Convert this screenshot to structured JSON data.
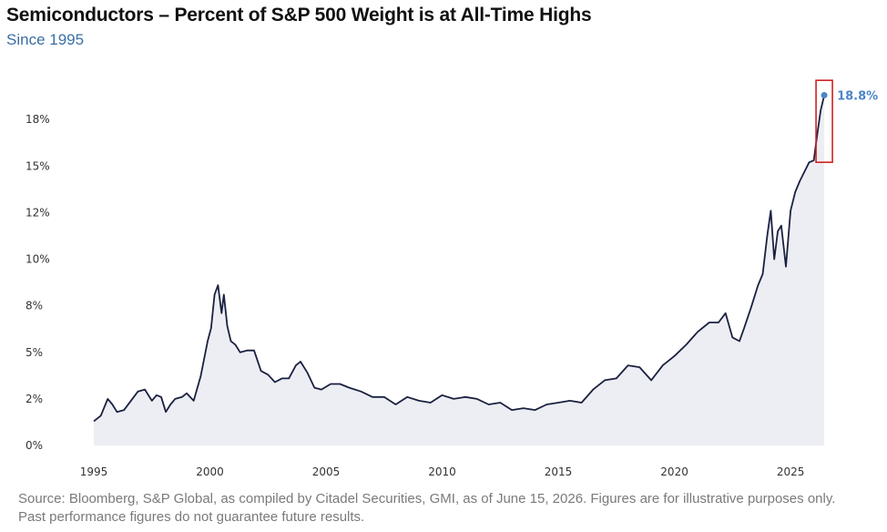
{
  "title": "Semiconductors – Percent of S&P 500 Weight is at All-Time Highs",
  "subtitle": "Since 1995",
  "source": "Source: Bloomberg, S&P Global, as compiled by Citadel Securities, GMI, as of June 15, 2026. Figures are for illustrative purposes only. Past performance figures do not guarantee future results.",
  "colors": {
    "line": "#1a2140",
    "area": "#eceef3",
    "highlight_box": "#cc2222",
    "end_marker": "#4a86c8",
    "title": "#111111",
    "subtitle": "#3a6fa6",
    "source": "#7a7a7a"
  },
  "chart_data": {
    "type": "area",
    "ylim": [
      0,
      20
    ],
    "xlim": [
      1995,
      2026.8
    ],
    "yticks": [
      0,
      2.5,
      5,
      7.5,
      10,
      12.5,
      15,
      17.5
    ],
    "ytick_labels": [
      "0%",
      "2%",
      "5%",
      "8%",
      "10%",
      "12%",
      "15%",
      "18%"
    ],
    "xticks": [
      1995,
      2000,
      2005,
      2010,
      2015,
      2020,
      2025
    ],
    "xtick_labels": [
      "1995",
      "2000",
      "2005",
      "2010",
      "2015",
      "2020",
      "2025"
    ],
    "grid": false,
    "legend": "none",
    "annotation": {
      "label": "18.8%",
      "x": 2026.45,
      "y": 18.8,
      "box_y_range": [
        15.2,
        19.6
      ]
    },
    "series": [
      {
        "name": "",
        "x": [
          1995.0,
          1995.3,
          1995.6,
          1995.8,
          1996.0,
          1996.3,
          1996.6,
          1996.9,
          1997.2,
          1997.5,
          1997.7,
          1997.9,
          1998.1,
          1998.3,
          1998.5,
          1998.8,
          1999.0,
          1999.3,
          1999.6,
          1999.9,
          2000.05,
          2000.2,
          2000.35,
          2000.5,
          2000.6,
          2000.75,
          2000.9,
          2001.1,
          2001.3,
          2001.6,
          2001.9,
          2002.2,
          2002.5,
          2002.8,
          2003.1,
          2003.4,
          2003.7,
          2003.9,
          2004.2,
          2004.5,
          2004.8,
          2005.2,
          2005.6,
          2006.0,
          2006.5,
          2007.0,
          2007.5,
          2008.0,
          2008.5,
          2009.0,
          2009.5,
          2010.0,
          2010.5,
          2011.0,
          2011.5,
          2012.0,
          2012.5,
          2013.0,
          2013.5,
          2014.0,
          2014.5,
          2015.0,
          2015.5,
          2016.0,
          2016.5,
          2017.0,
          2017.5,
          2018.0,
          2018.5,
          2019.0,
          2019.5,
          2020.0,
          2020.5,
          2021.0,
          2021.5,
          2021.9,
          2022.2,
          2022.5,
          2022.8,
          2023.0,
          2023.3,
          2023.6,
          2023.8,
          2024.0,
          2024.15,
          2024.3,
          2024.45,
          2024.6,
          2024.8,
          2025.0,
          2025.2,
          2025.4,
          2025.6,
          2025.8,
          2026.0,
          2026.15,
          2026.3,
          2026.45
        ],
        "values": [
          1.3,
          1.6,
          2.5,
          2.2,
          1.8,
          1.9,
          2.4,
          2.9,
          3.0,
          2.4,
          2.7,
          2.6,
          1.8,
          2.2,
          2.5,
          2.6,
          2.8,
          2.4,
          3.7,
          5.6,
          6.3,
          8.1,
          8.6,
          7.1,
          8.1,
          6.4,
          5.6,
          5.4,
          5.0,
          5.1,
          5.1,
          4.0,
          3.8,
          3.4,
          3.6,
          3.6,
          4.3,
          4.5,
          3.9,
          3.1,
          3.0,
          3.3,
          3.3,
          3.1,
          2.9,
          2.6,
          2.6,
          2.2,
          2.6,
          2.4,
          2.3,
          2.7,
          2.5,
          2.6,
          2.5,
          2.2,
          2.3,
          1.9,
          2.0,
          1.9,
          2.2,
          2.3,
          2.4,
          2.3,
          3.0,
          3.5,
          3.6,
          4.3,
          4.2,
          3.5,
          4.3,
          4.8,
          5.4,
          6.1,
          6.6,
          6.6,
          7.1,
          5.8,
          5.6,
          6.3,
          7.4,
          8.6,
          9.2,
          11.3,
          12.6,
          10.0,
          11.5,
          11.8,
          9.6,
          12.6,
          13.6,
          14.2,
          14.7,
          15.2,
          15.3,
          16.7,
          18.0,
          18.8
        ]
      }
    ]
  }
}
